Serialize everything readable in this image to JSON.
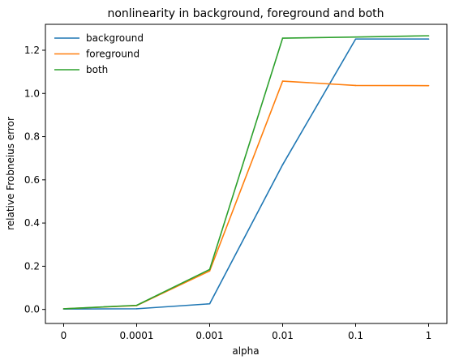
{
  "chart_data": {
    "type": "line",
    "title": "nonlinearity in background, foreground and both",
    "xlabel": "alpha",
    "ylabel": "relative Frobneius error",
    "categories": [
      "0",
      "0.0001",
      "0.001",
      "0.01",
      "0.1",
      "1"
    ],
    "ylim": [
      -0.065,
      1.32
    ],
    "yticks": [
      "0.0",
      "0.2",
      "0.4",
      "0.6",
      "0.8",
      "1.0",
      "1.2"
    ],
    "ytick_values": [
      0.0,
      0.2,
      0.4,
      0.6,
      0.8,
      1.0,
      1.2
    ],
    "grid": false,
    "legend_position": "top-left",
    "series": [
      {
        "name": "background",
        "color": "#1f77b4",
        "values": [
          0.002,
          0.003,
          0.026,
          0.67,
          1.252,
          1.252
        ]
      },
      {
        "name": "foreground",
        "color": "#ff7f0e",
        "values": [
          0.003,
          0.018,
          0.178,
          1.057,
          1.037,
          1.036
        ]
      },
      {
        "name": "both",
        "color": "#2ca02c",
        "values": [
          0.003,
          0.019,
          0.185,
          1.256,
          1.261,
          1.267
        ]
      }
    ]
  }
}
